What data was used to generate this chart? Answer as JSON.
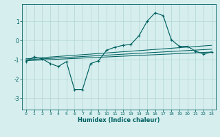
{
  "title": "",
  "xlabel": "Humidex (Indice chaleur)",
  "background_color": "#d6eeee",
  "grid_color": "#b8d8d8",
  "line_color": "#006060",
  "xlim": [
    -0.5,
    23.5
  ],
  "ylim": [
    -3.6,
    1.9
  ],
  "yticks": [
    -3,
    -2,
    -1,
    0,
    1
  ],
  "xticks": [
    0,
    1,
    2,
    3,
    4,
    5,
    6,
    7,
    8,
    9,
    10,
    11,
    12,
    13,
    14,
    15,
    16,
    17,
    18,
    19,
    20,
    21,
    22,
    23
  ],
  "series": {
    "main": {
      "x": [
        0,
        1,
        2,
        3,
        4,
        5,
        6,
        7,
        8,
        9,
        10,
        11,
        12,
        13,
        14,
        15,
        16,
        17,
        18,
        19,
        20,
        21,
        22,
        23
      ],
      "y": [
        -1.1,
        -0.85,
        -0.95,
        -1.2,
        -1.35,
        -1.1,
        -2.55,
        -2.55,
        -1.2,
        -1.05,
        -0.5,
        -0.35,
        -0.25,
        -0.2,
        0.25,
        1.0,
        1.45,
        1.3,
        0.05,
        -0.3,
        -0.3,
        -0.55,
        -0.7,
        -0.6
      ]
    },
    "line1": {
      "x": [
        0,
        23
      ],
      "y": [
        -1.05,
        -0.6
      ]
    },
    "line2": {
      "x": [
        0,
        23
      ],
      "y": [
        -1.0,
        -0.45
      ]
    },
    "line3": {
      "x": [
        0,
        23
      ],
      "y": [
        -0.95,
        -0.25
      ]
    }
  }
}
